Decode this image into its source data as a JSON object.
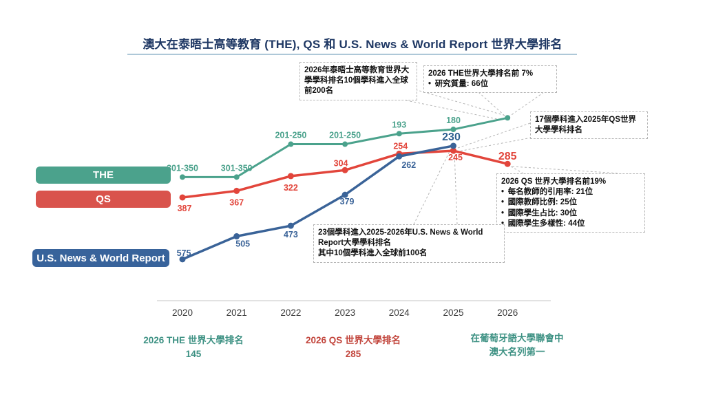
{
  "title": "澳大在泰晤士高等教育 (THE), QS 和 U.S. News & World Report 世界大學排名",
  "colors": {
    "the": "#4BA28C",
    "qs_line": "#E2453B",
    "qs_button": "#D9534C",
    "usnews_line": "#3A6398",
    "usnews_button": "#38639B",
    "usnews_emphasis": "#2D5F8F",
    "title_text": "#1F3864",
    "caption_teal": "#3D9183",
    "caption_red": "#C2453C",
    "connector": "#B5B5B5",
    "axis_line": "#D8D8D8"
  },
  "legend": [
    {
      "label": "THE"
    },
    {
      "label": "QS"
    },
    {
      "label": "U.S. News & World Report"
    }
  ],
  "chart_data": {
    "type": "line",
    "x": [
      "2020",
      "2021",
      "2022",
      "2023",
      "2024",
      "2025",
      "2026"
    ],
    "y_axis": {
      "inverted": true,
      "meaning": "world university ranking (smaller number = higher position)"
    },
    "legend_position": "left",
    "grid": false,
    "series": [
      {
        "name": "THE",
        "color": "#4BA28C",
        "labels": [
          "301-350",
          "301-350",
          "201-250",
          "201-250",
          "193",
          "180",
          ""
        ],
        "values": [
          325,
          325,
          225,
          225,
          193,
          180,
          145
        ]
      },
      {
        "name": "QS",
        "color": "#E2453B",
        "labels": [
          "387",
          "367",
          "322",
          "304",
          "254",
          "245",
          "285"
        ],
        "values": [
          387,
          367,
          322,
          304,
          254,
          245,
          285
        ],
        "emphasis_index": 6
      },
      {
        "name": "U.S. News & World Report",
        "color": "#3A6398",
        "labels": [
          "575",
          "505",
          "473",
          "379",
          "262",
          "230"
        ],
        "values": [
          575,
          505,
          473,
          379,
          262,
          230
        ],
        "emphasis_index": 5
      }
    ]
  },
  "annotations": [
    {
      "title": "2026年泰晤士高等教育世界大學學科排名10個學科進入全球前200名",
      "bullets": []
    },
    {
      "title": "2026 THE世界大學排名前 7%",
      "bullets": [
        "研究質量: 66位"
      ]
    },
    {
      "title": "17個學科進入2025年QS世界大學學科排名",
      "bullets": []
    },
    {
      "title": "2026 QS 世界大學排名前19%",
      "bullets": [
        "每名教師的引用率: 21位",
        "國際教師比例: 25位",
        "國際學生占比: 30位",
        "國際學生多樣性: 44位"
      ]
    },
    {
      "lines": [
        "23個學科進入2025-2026年U.S. News & World Report大學學科排名",
        "其中10個學科進入全球前100名"
      ]
    }
  ],
  "captions": [
    {
      "line1": "2026 THE 世界大學排名",
      "line2": "145"
    },
    {
      "line1": "2026 QS 世界大學排名",
      "line2": "285"
    },
    {
      "line1": "在葡萄牙語大學聯會中",
      "line2": "澳大名列第一"
    }
  ]
}
